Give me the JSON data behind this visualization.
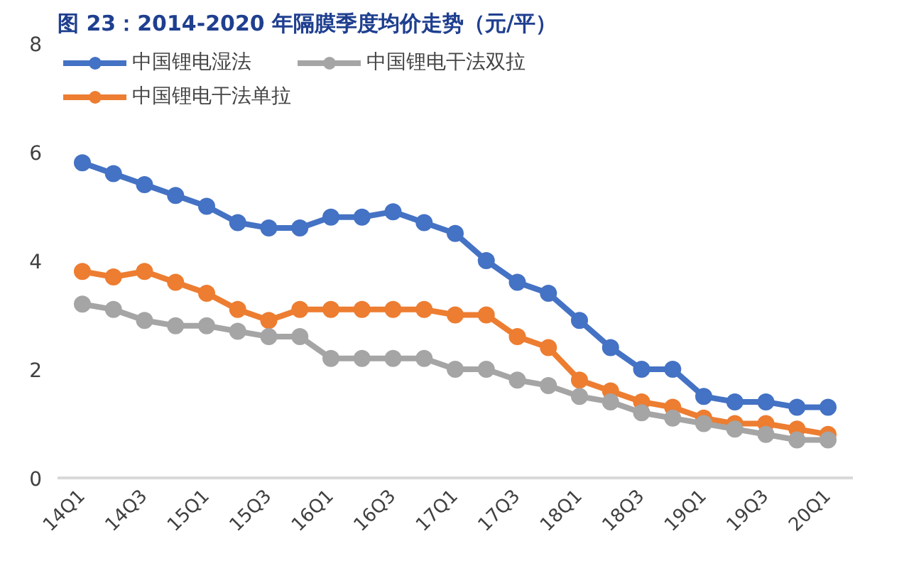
{
  "chart_data": {
    "type": "line",
    "title": "图 23：2014-2020 年隔膜季度均价走势（元/平）",
    "categories": [
      "14Q1",
      null,
      "14Q3",
      null,
      "15Q1",
      null,
      "15Q3",
      null,
      "16Q1",
      null,
      "16Q3",
      null,
      "17Q1",
      null,
      "17Q3",
      null,
      "18Q1",
      null,
      "18Q3",
      null,
      "19Q1",
      null,
      "19Q3",
      null,
      "20Q1"
    ],
    "series": [
      {
        "name": "中国锂电湿法",
        "color": "#4472c4",
        "values": [
          5.8,
          5.6,
          5.4,
          5.2,
          5.0,
          4.7,
          4.6,
          4.6,
          4.8,
          4.8,
          4.9,
          4.7,
          4.5,
          4.0,
          3.6,
          3.4,
          2.9,
          2.4,
          2.0,
          2.0,
          1.5,
          1.4,
          1.4,
          1.3,
          1.3
        ]
      },
      {
        "name": "中国锂电干法单拉",
        "color": "#ed7d31",
        "values": [
          3.8,
          3.7,
          3.8,
          3.6,
          3.4,
          3.1,
          2.9,
          3.1,
          3.1,
          3.1,
          3.1,
          3.1,
          3.0,
          3.0,
          2.6,
          2.4,
          1.8,
          1.6,
          1.4,
          1.3,
          1.1,
          1.0,
          1.0,
          0.9,
          0.8
        ]
      },
      {
        "name": "中国锂电干法双拉",
        "color": "#a5a5a5",
        "values": [
          3.2,
          3.1,
          2.9,
          2.8,
          2.8,
          2.7,
          2.6,
          2.6,
          2.2,
          2.2,
          2.2,
          2.2,
          2.0,
          2.0,
          1.8,
          1.7,
          1.5,
          1.4,
          1.2,
          1.1,
          1.0,
          0.9,
          0.8,
          0.7,
          0.7
        ]
      }
    ],
    "ylim": [
      0,
      8
    ],
    "yticks": [
      0,
      2,
      4,
      6,
      8
    ],
    "grid": false,
    "legend": "top left",
    "marker": "circle",
    "line_style": "solid"
  }
}
